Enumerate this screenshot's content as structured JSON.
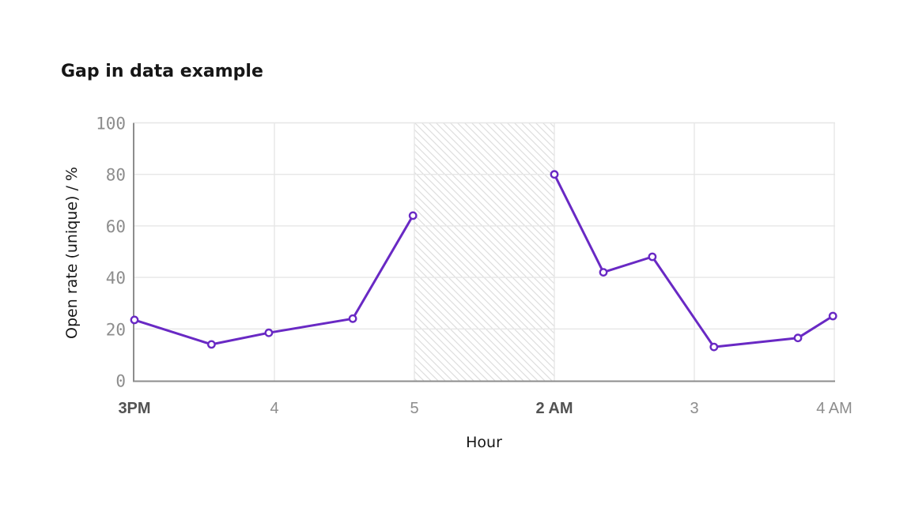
{
  "title": "Gap in data example",
  "chart_data": {
    "type": "line",
    "title": "Gap in data example",
    "xlabel": "Hour",
    "ylabel": "Open rate (unique) / %",
    "ylim": [
      0,
      100
    ],
    "y_ticks": [
      0,
      20,
      40,
      60,
      80,
      100
    ],
    "x_ticks": [
      {
        "label": "3PM",
        "emphasis": true
      },
      {
        "label": "4",
        "emphasis": false
      },
      {
        "label": "5",
        "emphasis": false
      },
      {
        "label": "2 AM",
        "emphasis": true
      },
      {
        "label": "3",
        "emphasis": false
      },
      {
        "label": "4 AM",
        "emphasis": false
      }
    ],
    "x_scale_note": "x values are in tick units: 0=3PM, 1=4, 2=5, 3=2AM, 4=3, 5=4AM",
    "series": [
      {
        "name": "Open rate",
        "segments": [
          {
            "points": [
              {
                "x": 0.0,
                "y": 23.5
              },
              {
                "x": 0.55,
                "y": 14
              },
              {
                "x": 0.96,
                "y": 18.5
              },
              {
                "x": 1.56,
                "y": 24
              },
              {
                "x": 1.99,
                "y": 64
              }
            ]
          },
          {
            "points": [
              {
                "x": 3.0,
                "y": 80
              },
              {
                "x": 3.35,
                "y": 42
              },
              {
                "x": 3.7,
                "y": 48
              },
              {
                "x": 4.14,
                "y": 13
              },
              {
                "x": 4.74,
                "y": 16.5
              },
              {
                "x": 4.99,
                "y": 25
              }
            ]
          }
        ]
      }
    ],
    "gap_region": {
      "x_start": 2.0,
      "x_end": 3.0,
      "style": "diagonal-hatch"
    },
    "legend": "none",
    "grid": "on",
    "colors": {
      "line": "#6929c4",
      "marker_fill": "#ffffff",
      "grid": "#e6e6e6",
      "axis": "#8d8d8d",
      "hatch": "#dedede",
      "tick_label": "#8d8d8d",
      "tick_label_emphasis": "#525252",
      "text": "#161616",
      "background": "#ffffff"
    }
  }
}
